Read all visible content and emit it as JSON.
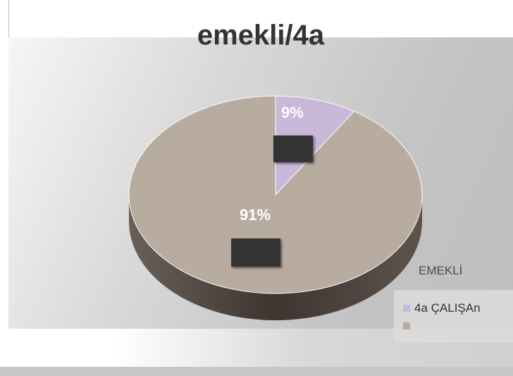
{
  "chart_data": {
    "type": "pie",
    "title": "emekli/4a",
    "legend_title": "EMEKLİ",
    "slices": [
      {
        "label": "4a  ÇALIŞAn",
        "value": 9,
        "label_text": "9%",
        "color": "#c9b8d9"
      },
      {
        "label": "",
        "value": 91,
        "label_text": "91%",
        "color": "#b8aba0"
      }
    ],
    "legend_placement": "bottom-right",
    "colors": {
      "side_wall": "#4a3f3a"
    }
  }
}
